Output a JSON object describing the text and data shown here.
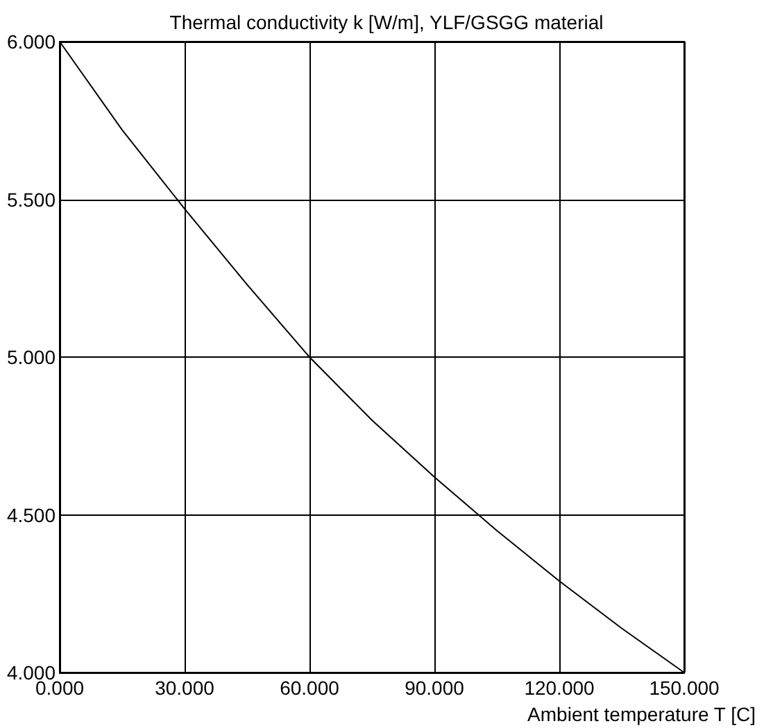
{
  "chart_data": {
    "type": "line",
    "title": "Thermal conductivity k [W/m], YLF/GSGG material",
    "xlabel": "Ambient temperature T [C]",
    "x": [
      0,
      15,
      30,
      45,
      60,
      75,
      90,
      105,
      120,
      135,
      150
    ],
    "series": [
      {
        "color": "#000000",
        "values": [
          6.0,
          5.72,
          5.47,
          5.23,
          5.0,
          4.8,
          4.62,
          4.45,
          4.29,
          4.14,
          4.0
        ]
      }
    ],
    "xlim": [
      0,
      150
    ],
    "ylim": [
      4,
      6
    ],
    "xticks": [
      {
        "value": 0,
        "label": "0.000"
      },
      {
        "value": 30,
        "label": "30.000"
      },
      {
        "value": 60,
        "label": "60.000"
      },
      {
        "value": 90,
        "label": "90.000"
      },
      {
        "value": 120,
        "label": "120.000"
      },
      {
        "value": 150,
        "label": "150.000"
      }
    ],
    "yticks": [
      {
        "value": 4,
        "label": "4.000"
      },
      {
        "value": 4.5,
        "label": "4.500"
      },
      {
        "value": 5,
        "label": "5.000"
      },
      {
        "value": 5.5,
        "label": "5.500"
      },
      {
        "value": 6,
        "label": "6.000"
      }
    ],
    "grid": true,
    "marker": "none",
    "line_style": "solid"
  }
}
